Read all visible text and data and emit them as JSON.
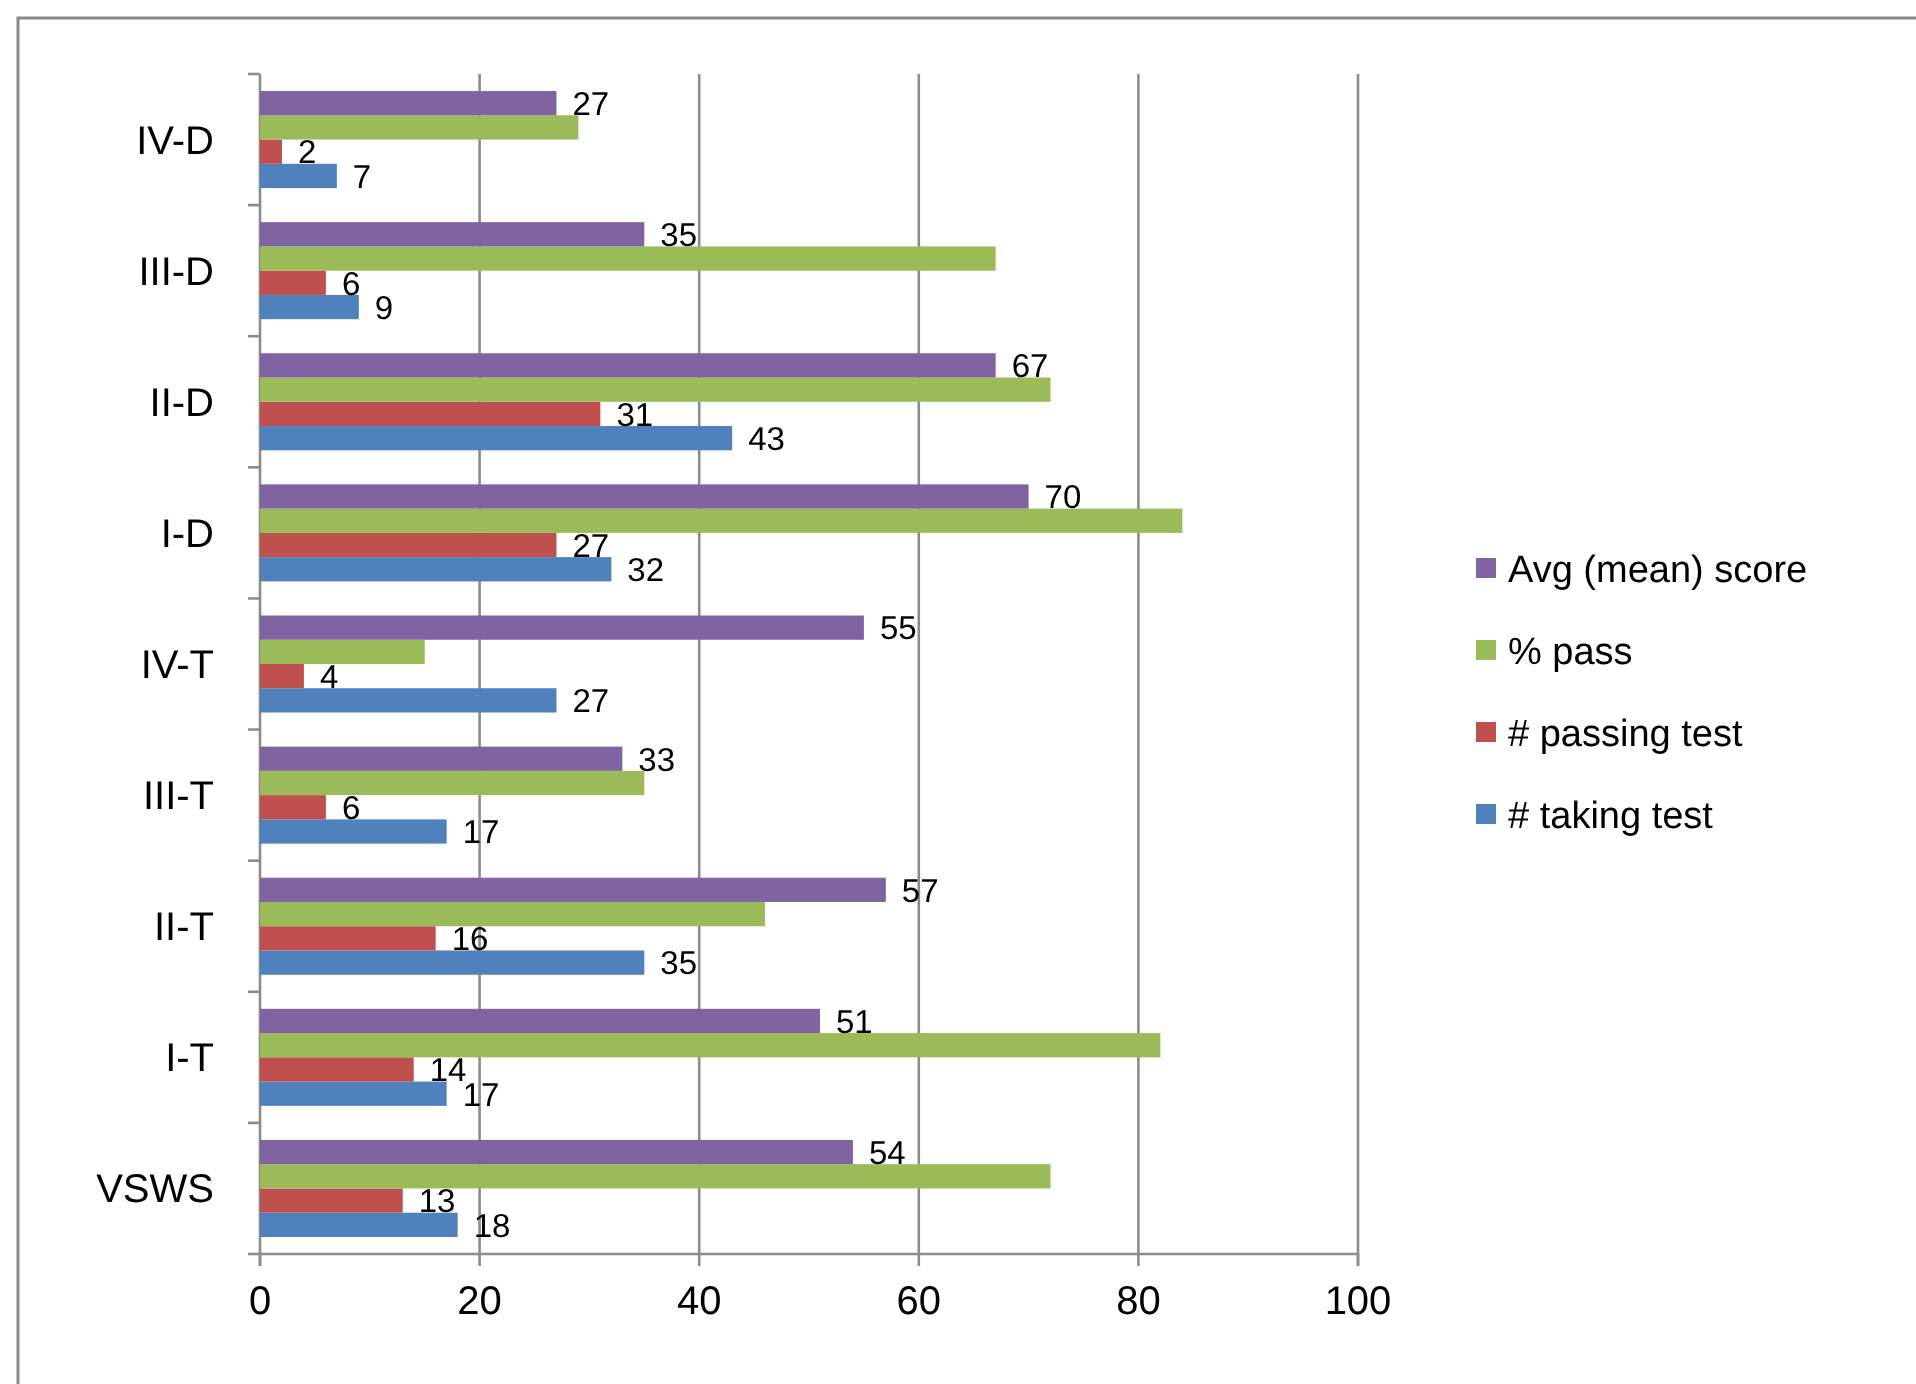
{
  "chart_data": {
    "type": "bar",
    "orientation": "horizontal",
    "categories": [
      "IV-D",
      "III-D",
      "II-D",
      "I-D",
      "IV-T",
      "III-T",
      "II-T",
      "I-T",
      "VSWS"
    ],
    "series": [
      {
        "name": "# taking test",
        "color": "#4f81bd",
        "values": [
          7,
          9,
          43,
          32,
          27,
          17,
          35,
          17,
          18
        ],
        "value_labels": [
          "7",
          "9",
          "43",
          "32",
          "27",
          "17",
          "35",
          "17",
          "18"
        ]
      },
      {
        "name": "# passing test",
        "color": "#c0504d",
        "values": [
          2,
          6,
          31,
          27,
          4,
          6,
          16,
          14,
          13
        ],
        "value_labels": [
          "2",
          "6",
          "31",
          "27",
          "4",
          "6",
          "16",
          "14",
          "13"
        ]
      },
      {
        "name": "% pass",
        "color": "#9bbb59",
        "values": [
          29,
          67,
          72,
          84,
          15,
          35,
          46,
          82,
          72
        ]
      },
      {
        "name": "Avg (mean) score",
        "color": "#8064a2",
        "values": [
          27,
          35,
          67,
          70,
          55,
          33,
          57,
          51,
          54
        ],
        "value_labels": [
          "27",
          "35",
          "67",
          "70",
          "55",
          "33",
          "57",
          "51",
          "54"
        ]
      }
    ],
    "xlim": [
      0,
      100
    ],
    "xticks": [
      0,
      20,
      40,
      60,
      80,
      100
    ],
    "grid": "x",
    "legend": "right"
  }
}
